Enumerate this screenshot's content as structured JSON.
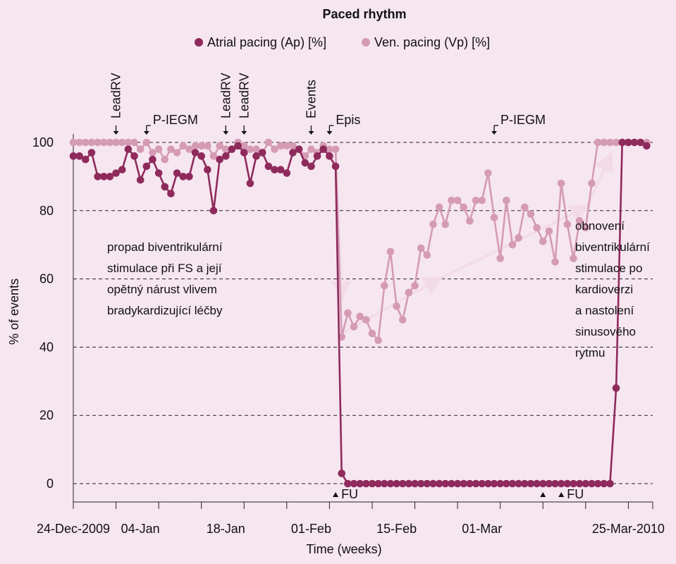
{
  "chart_data": {
    "type": "line",
    "title": "Paced rhythm",
    "xlabel": "Time (weeks)",
    "ylabel": "% of events",
    "x_range": [
      "2009-12-24",
      "2010-03-29"
    ],
    "ylim": [
      0,
      100
    ],
    "y_ticks": [
      0,
      20,
      40,
      60,
      80,
      100
    ],
    "x_ticks": [
      {
        "date": "2009-12-24",
        "label": "24-Dec-2009"
      },
      {
        "date": "2010-01-04",
        "label": "04-Jan"
      },
      {
        "date": "2010-01-18",
        "label": "18-Jan"
      },
      {
        "date": "2010-02-01",
        "label": "01-Feb"
      },
      {
        "date": "2010-02-15",
        "label": "15-Feb"
      },
      {
        "date": "2010-03-01",
        "label": "01-Mar"
      },
      {
        "date": "2010-03-25",
        "label": "25-Mar-2010"
      }
    ],
    "grid": "dashed horizontal",
    "legend_position": "top",
    "series": [
      {
        "name": "Atrial pacing (Ap) [%]",
        "color": "#8e2a5c",
        "points": [
          [
            "2009-12-24",
            96
          ],
          [
            "2009-12-25",
            96
          ],
          [
            "2009-12-26",
            95
          ],
          [
            "2009-12-27",
            97
          ],
          [
            "2009-12-28",
            90
          ],
          [
            "2009-12-29",
            90
          ],
          [
            "2009-12-30",
            90
          ],
          [
            "2009-12-31",
            91
          ],
          [
            "2010-01-01",
            92
          ],
          [
            "2010-01-02",
            98
          ],
          [
            "2010-01-03",
            96
          ],
          [
            "2010-01-04",
            89
          ],
          [
            "2010-01-05",
            93
          ],
          [
            "2010-01-06",
            95
          ],
          [
            "2010-01-07",
            91
          ],
          [
            "2010-01-08",
            87
          ],
          [
            "2010-01-09",
            85
          ],
          [
            "2010-01-10",
            91
          ],
          [
            "2010-01-11",
            90
          ],
          [
            "2010-01-12",
            90
          ],
          [
            "2010-01-13",
            97
          ],
          [
            "2010-01-14",
            96
          ],
          [
            "2010-01-15",
            92
          ],
          [
            "2010-01-16",
            80
          ],
          [
            "2010-01-17",
            95
          ],
          [
            "2010-01-18",
            96
          ],
          [
            "2010-01-19",
            98
          ],
          [
            "2010-01-20",
            99
          ],
          [
            "2010-01-21",
            97
          ],
          [
            "2010-01-22",
            88
          ],
          [
            "2010-01-23",
            96
          ],
          [
            "2010-01-24",
            97
          ],
          [
            "2010-01-25",
            93
          ],
          [
            "2010-01-26",
            92
          ],
          [
            "2010-01-27",
            92
          ],
          [
            "2010-01-28",
            91
          ],
          [
            "2010-01-29",
            97
          ],
          [
            "2010-01-30",
            98
          ],
          [
            "2010-01-31",
            94
          ],
          [
            "2010-02-01",
            93
          ],
          [
            "2010-02-02",
            96
          ],
          [
            "2010-02-03",
            98
          ],
          [
            "2010-02-04",
            96
          ],
          [
            "2010-02-05",
            93
          ],
          [
            "2010-02-06",
            3
          ],
          [
            "2010-02-07",
            0
          ],
          [
            "2010-02-08",
            0
          ],
          [
            "2010-02-09",
            0
          ],
          [
            "2010-02-10",
            0
          ],
          [
            "2010-02-11",
            0
          ],
          [
            "2010-02-12",
            0
          ],
          [
            "2010-02-13",
            0
          ],
          [
            "2010-02-14",
            0
          ],
          [
            "2010-02-15",
            0
          ],
          [
            "2010-02-16",
            0
          ],
          [
            "2010-02-17",
            0
          ],
          [
            "2010-02-18",
            0
          ],
          [
            "2010-02-19",
            0
          ],
          [
            "2010-02-20",
            0
          ],
          [
            "2010-02-21",
            0
          ],
          [
            "2010-02-22",
            0
          ],
          [
            "2010-02-23",
            0
          ],
          [
            "2010-02-24",
            0
          ],
          [
            "2010-02-25",
            0
          ],
          [
            "2010-02-26",
            0
          ],
          [
            "2010-02-27",
            0
          ],
          [
            "2010-02-28",
            0
          ],
          [
            "2010-03-01",
            0
          ],
          [
            "2010-03-02",
            0
          ],
          [
            "2010-03-03",
            0
          ],
          [
            "2010-03-04",
            0
          ],
          [
            "2010-03-05",
            0
          ],
          [
            "2010-03-06",
            0
          ],
          [
            "2010-03-07",
            0
          ],
          [
            "2010-03-08",
            0
          ],
          [
            "2010-03-09",
            0
          ],
          [
            "2010-03-10",
            0
          ],
          [
            "2010-03-11",
            0
          ],
          [
            "2010-03-12",
            0
          ],
          [
            "2010-03-13",
            0
          ],
          [
            "2010-03-14",
            0
          ],
          [
            "2010-03-15",
            0
          ],
          [
            "2010-03-16",
            0
          ],
          [
            "2010-03-17",
            0
          ],
          [
            "2010-03-18",
            0
          ],
          [
            "2010-03-19",
            0
          ],
          [
            "2010-03-20",
            0
          ],
          [
            "2010-03-21",
            0
          ],
          [
            "2010-03-22",
            0
          ],
          [
            "2010-03-23",
            28
          ],
          [
            "2010-03-24",
            100
          ],
          [
            "2010-03-25",
            100
          ],
          [
            "2010-03-26",
            100
          ],
          [
            "2010-03-27",
            100
          ],
          [
            "2010-03-28",
            99
          ]
        ]
      },
      {
        "name": "Ven. pacing (Vp) [%]",
        "color": "#d59bb4",
        "points": [
          [
            "2009-12-24",
            100
          ],
          [
            "2009-12-25",
            100
          ],
          [
            "2009-12-26",
            100
          ],
          [
            "2009-12-27",
            100
          ],
          [
            "2009-12-28",
            100
          ],
          [
            "2009-12-29",
            100
          ],
          [
            "2009-12-30",
            100
          ],
          [
            "2009-12-31",
            100
          ],
          [
            "2010-01-01",
            100
          ],
          [
            "2010-01-02",
            100
          ],
          [
            "2010-01-03",
            100
          ],
          [
            "2010-01-04",
            98
          ],
          [
            "2010-01-05",
            100
          ],
          [
            "2010-01-06",
            97
          ],
          [
            "2010-01-07",
            98
          ],
          [
            "2010-01-08",
            95
          ],
          [
            "2010-01-09",
            98
          ],
          [
            "2010-01-10",
            97
          ],
          [
            "2010-01-11",
            99
          ],
          [
            "2010-01-12",
            98
          ],
          [
            "2010-01-13",
            99
          ],
          [
            "2010-01-14",
            99
          ],
          [
            "2010-01-15",
            99
          ],
          [
            "2010-01-16",
            96
          ],
          [
            "2010-01-17",
            99
          ],
          [
            "2010-01-18",
            98
          ],
          [
            "2010-01-19",
            98
          ],
          [
            "2010-01-20",
            100
          ],
          [
            "2010-01-21",
            99
          ],
          [
            "2010-01-22",
            98
          ],
          [
            "2010-01-23",
            98
          ],
          [
            "2010-01-24",
            97
          ],
          [
            "2010-01-25",
            100
          ],
          [
            "2010-01-26",
            98
          ],
          [
            "2010-01-27",
            99
          ],
          [
            "2010-01-28",
            99
          ],
          [
            "2010-01-29",
            99
          ],
          [
            "2010-01-30",
            98
          ],
          [
            "2010-01-31",
            96
          ],
          [
            "2010-02-01",
            98
          ],
          [
            "2010-02-02",
            97
          ],
          [
            "2010-02-03",
            99
          ],
          [
            "2010-02-04",
            98
          ],
          [
            "2010-02-05",
            98
          ],
          [
            "2010-02-06",
            43
          ],
          [
            "2010-02-07",
            50
          ],
          [
            "2010-02-08",
            46
          ],
          [
            "2010-02-09",
            49
          ],
          [
            "2010-02-10",
            48
          ],
          [
            "2010-02-11",
            44
          ],
          [
            "2010-02-12",
            42
          ],
          [
            "2010-02-13",
            58
          ],
          [
            "2010-02-14",
            68
          ],
          [
            "2010-02-15",
            52
          ],
          [
            "2010-02-16",
            48
          ],
          [
            "2010-02-17",
            56
          ],
          [
            "2010-02-18",
            58
          ],
          [
            "2010-02-19",
            69
          ],
          [
            "2010-02-20",
            67
          ],
          [
            "2010-02-21",
            76
          ],
          [
            "2010-02-22",
            81
          ],
          [
            "2010-02-23",
            76
          ],
          [
            "2010-02-24",
            83
          ],
          [
            "2010-02-25",
            83
          ],
          [
            "2010-02-26",
            81
          ],
          [
            "2010-02-27",
            77
          ],
          [
            "2010-02-28",
            83
          ],
          [
            "2010-03-01",
            83
          ],
          [
            "2010-03-02",
            91
          ],
          [
            "2010-03-03",
            78
          ],
          [
            "2010-03-04",
            66
          ],
          [
            "2010-03-05",
            83
          ],
          [
            "2010-03-06",
            70
          ],
          [
            "2010-03-07",
            72
          ],
          [
            "2010-03-08",
            81
          ],
          [
            "2010-03-09",
            79
          ],
          [
            "2010-03-10",
            75
          ],
          [
            "2010-03-11",
            71
          ],
          [
            "2010-03-12",
            74
          ],
          [
            "2010-03-13",
            65
          ],
          [
            "2010-03-14",
            88
          ],
          [
            "2010-03-15",
            76
          ],
          [
            "2010-03-16",
            66
          ],
          [
            "2010-03-17",
            77
          ],
          [
            "2010-03-18",
            75
          ],
          [
            "2010-03-19",
            88
          ],
          [
            "2010-03-20",
            100
          ],
          [
            "2010-03-21",
            100
          ],
          [
            "2010-03-22",
            100
          ],
          [
            "2010-03-23",
            100
          ],
          [
            "2010-03-24",
            100
          ],
          [
            "2010-03-25",
            100
          ],
          [
            "2010-03-26",
            100
          ],
          [
            "2010-03-27",
            100
          ],
          [
            "2010-03-28",
            100
          ]
        ]
      }
    ],
    "markers_top": [
      {
        "label": "LeadRV",
        "date": "2009-12-31",
        "vertical": true
      },
      {
        "label": "P-IEGM",
        "date": "2010-01-05",
        "vertical": false
      },
      {
        "label": "LeadRV",
        "date": "2010-01-18",
        "vertical": true
      },
      {
        "label": "LeadRV",
        "date": "2010-01-21",
        "vertical": true
      },
      {
        "label": "Events",
        "date": "2010-02-01",
        "vertical": true
      },
      {
        "label": "Epis",
        "date": "2010-02-04",
        "vertical": false
      },
      {
        "label": "P-IEGM",
        "date": "2010-03-03",
        "vertical": false
      }
    ],
    "markers_bottom": [
      {
        "label": "FU",
        "date": "2010-02-05"
      },
      {
        "label": "",
        "date": "2010-03-11"
      },
      {
        "label": "FU",
        "date": "2010-03-14"
      }
    ],
    "trend_arrows": [
      {
        "from": [
          "2010-02-05",
          98
        ],
        "to": [
          "2010-02-06",
          55
        ]
      },
      {
        "from": [
          "2010-02-06",
          44
        ],
        "to": [
          "2010-02-22",
          60
        ]
      },
      {
        "from": [
          "2010-02-22",
          60
        ],
        "to": [
          "2010-03-18",
          81
        ]
      },
      {
        "from": [
          "2010-03-18",
          80
        ],
        "to": [
          "2010-03-22",
          96
        ]
      }
    ],
    "annotations": [
      {
        "lines": [
          "propad biventrikulární",
          "stimulace při FS a její",
          "opětný nárust vlivem",
          "bradykardizující léčby"
        ]
      },
      {
        "lines": [
          "obnovení",
          "biventrikulární",
          "stimulace po",
          "kardioverzi",
          "a nastolení",
          "sinusového",
          "rytmu"
        ]
      }
    ]
  }
}
